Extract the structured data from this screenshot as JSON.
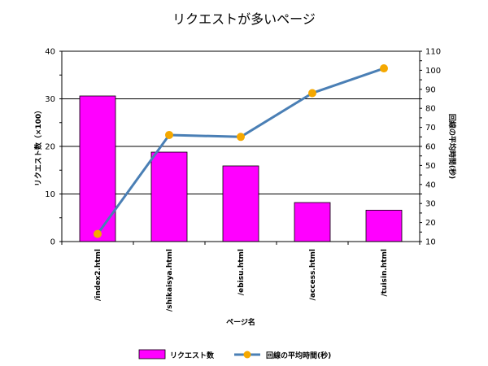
{
  "chart_data": {
    "type": "bar",
    "title": "リクエストが多いページ",
    "xlabel": "ページ名",
    "ylabel": "リクエスト数（×100）",
    "y2label": "回線の平均時間(秒)",
    "categories": [
      "/index2.html",
      "/shikaisya.html",
      "/ebisu.html",
      "/access.html",
      "/tuisin.html"
    ],
    "ylim": [
      0,
      40
    ],
    "yticks": [
      "0",
      "10",
      "20",
      "30",
      "40"
    ],
    "y2lim": [
      10,
      110
    ],
    "y2ticks": [
      "10",
      "20",
      "30",
      "40",
      "50",
      "60",
      "70",
      "80",
      "90",
      "100",
      "110"
    ],
    "series": [
      {
        "name": "リクエスト数",
        "type": "bar",
        "axis": "left",
        "color": "#ff00ff",
        "values": [
          30.6,
          18.8,
          15.9,
          8.2,
          6.6
        ]
      },
      {
        "name": "回線の平均時間(秒)",
        "type": "line",
        "axis": "right",
        "color": "#4a7fb5",
        "marker_color": "#f5a800",
        "values": [
          14,
          66,
          65,
          88,
          101
        ]
      }
    ],
    "grid": true,
    "legend_position": "bottom"
  }
}
